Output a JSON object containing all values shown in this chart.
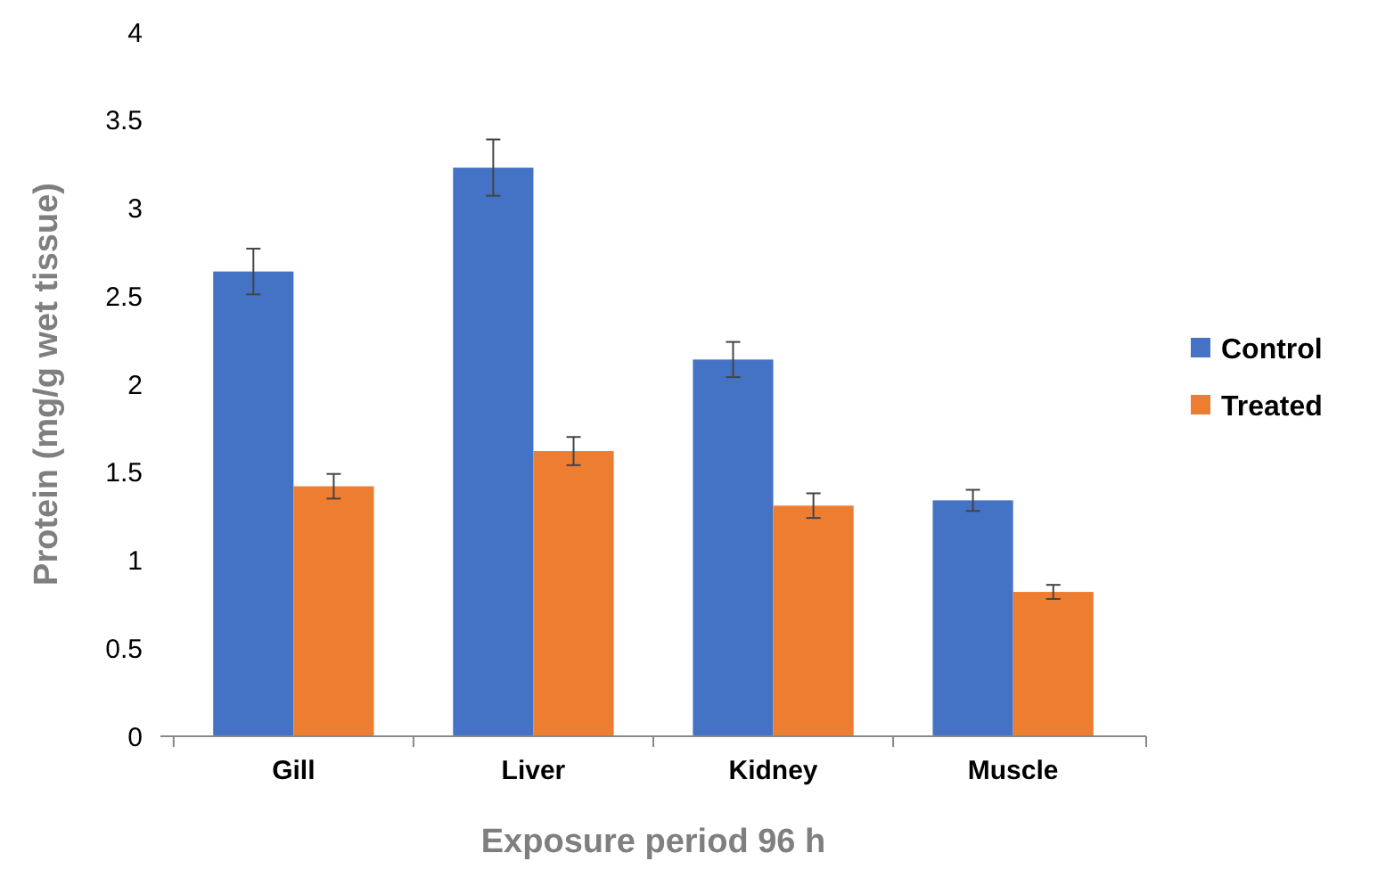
{
  "chart_data": {
    "type": "bar",
    "xlabel": "Exposure period 96 h",
    "ylabel": "Protein (mg/g wet tissue)",
    "categories": [
      "Gill",
      "Liver",
      "Kidney",
      "Muscle"
    ],
    "series": [
      {
        "name": "Control",
        "color": "#4472c4",
        "values": [
          2.64,
          3.23,
          2.14,
          1.34
        ],
        "errors": [
          0.13,
          0.16,
          0.1,
          0.06
        ]
      },
      {
        "name": "Treated",
        "color": "#ed7d31",
        "values": [
          1.42,
          1.62,
          1.31,
          0.82
        ],
        "errors": [
          0.07,
          0.08,
          0.07,
          0.04
        ]
      }
    ],
    "ylim": [
      0,
      4
    ],
    "yticks": [
      0,
      0.5,
      1,
      1.5,
      2,
      2.5,
      3,
      3.5,
      4
    ],
    "grid": false,
    "legend": "right"
  }
}
